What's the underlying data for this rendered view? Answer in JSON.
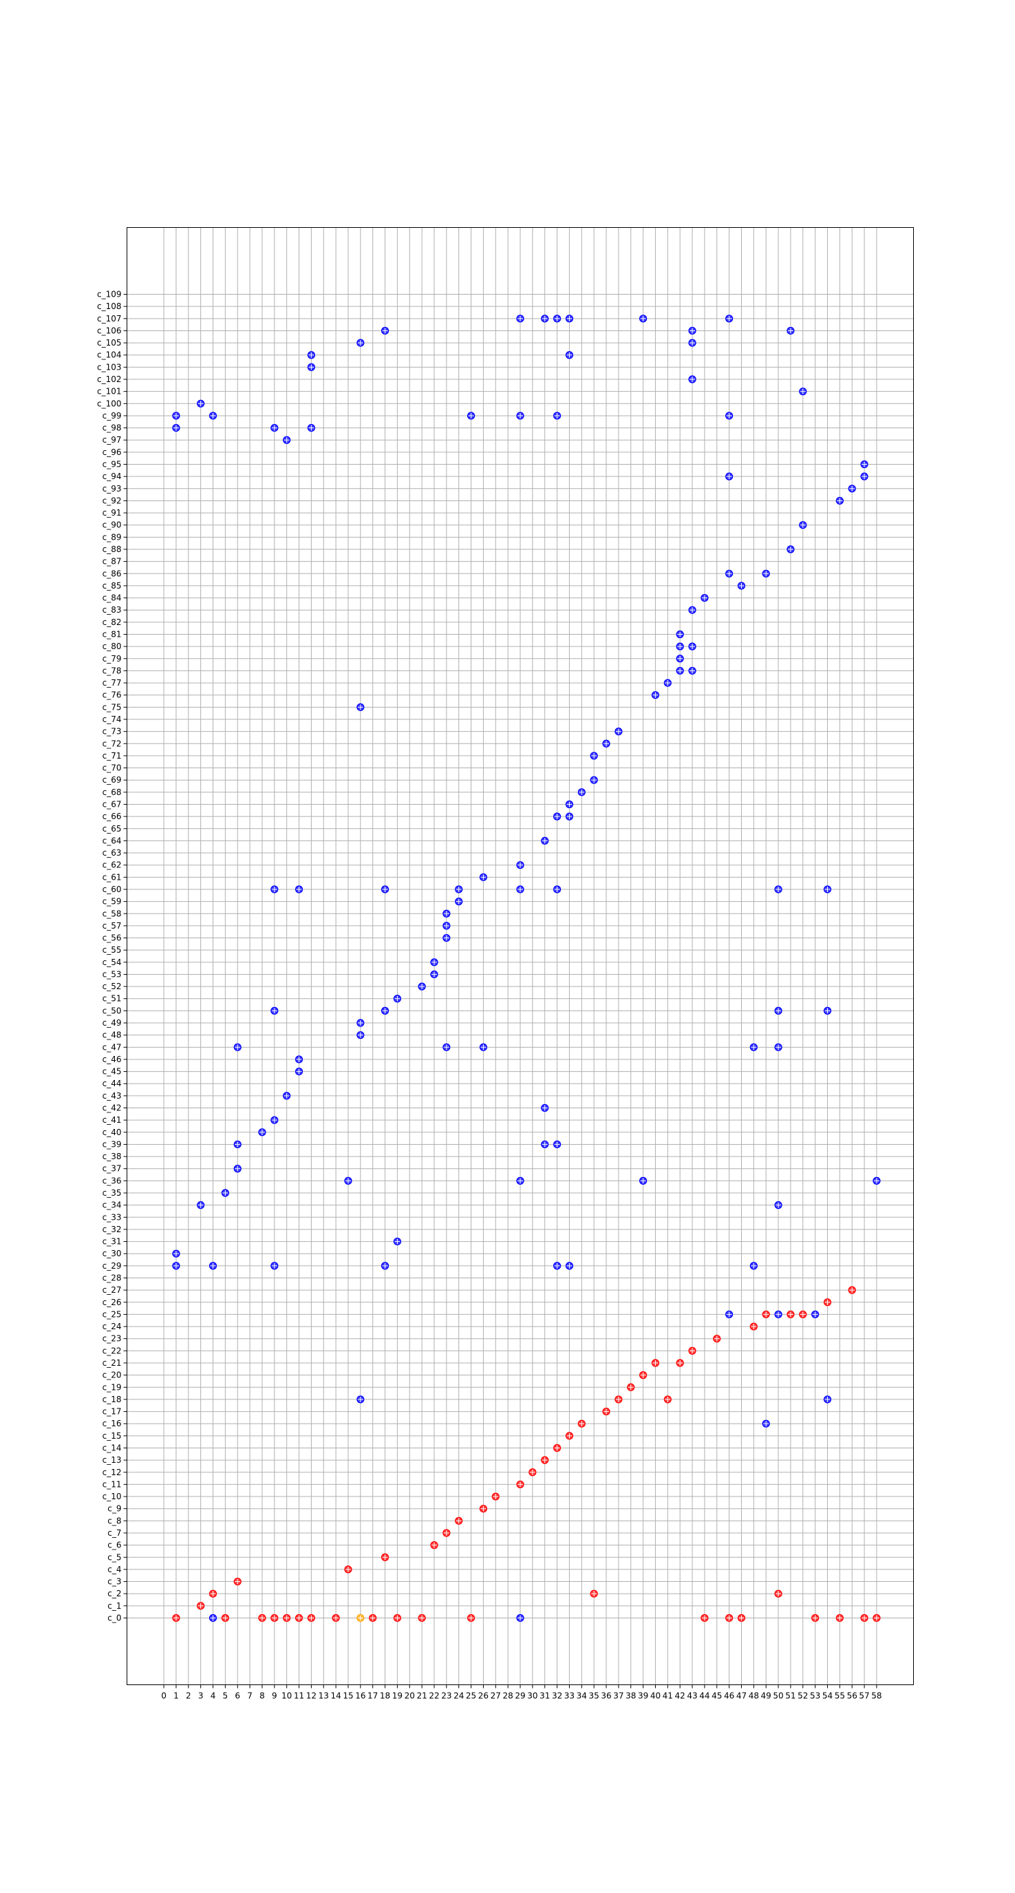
{
  "chart_data": {
    "type": "scatter",
    "title": "",
    "xlabel": "",
    "ylabel": "",
    "x_ticks": [
      0,
      1,
      2,
      3,
      4,
      5,
      6,
      7,
      8,
      9,
      10,
      11,
      12,
      13,
      14,
      15,
      16,
      17,
      18,
      19,
      20,
      21,
      22,
      23,
      24,
      25,
      26,
      27,
      28,
      29,
      30,
      31,
      32,
      33,
      34,
      35,
      36,
      37,
      38,
      39,
      40,
      41,
      42,
      43,
      44,
      45,
      46,
      47,
      48,
      49,
      50,
      51,
      52,
      53,
      54,
      55,
      56,
      57,
      58
    ],
    "y_categories_count": 110,
    "y_category_prefix": "c_",
    "xlim": [
      -3,
      61
    ],
    "ylim": [
      -5.5,
      114.5
    ],
    "grid": true,
    "legend": "none",
    "colors": {
      "red": "#ff0000",
      "blue": "#0000ff",
      "orange": "#ffa500"
    },
    "series": [
      {
        "color": "red",
        "points": [
          [
            1,
            0
          ],
          [
            8,
            0
          ],
          [
            9,
            0
          ],
          [
            10,
            0
          ],
          [
            11,
            0
          ],
          [
            12,
            0
          ],
          [
            14,
            0
          ],
          [
            17,
            0
          ],
          [
            19,
            0
          ],
          [
            21,
            0
          ],
          [
            25,
            0
          ],
          [
            44,
            0
          ],
          [
            46,
            0
          ],
          [
            47,
            0
          ],
          [
            53,
            0
          ],
          [
            55,
            0
          ],
          [
            57,
            0
          ],
          [
            58,
            0
          ],
          [
            5,
            0
          ],
          [
            3,
            1
          ],
          [
            4,
            2
          ],
          [
            35,
            2
          ],
          [
            50,
            2
          ],
          [
            6,
            3
          ],
          [
            15,
            4
          ],
          [
            18,
            5
          ],
          [
            22,
            6
          ],
          [
            23,
            7
          ],
          [
            24,
            8
          ],
          [
            26,
            9
          ],
          [
            27,
            10
          ],
          [
            29,
            11
          ],
          [
            30,
            12
          ],
          [
            31,
            13
          ],
          [
            32,
            14
          ],
          [
            33,
            15
          ],
          [
            34,
            16
          ],
          [
            36,
            17
          ],
          [
            37,
            18
          ],
          [
            41,
            18
          ],
          [
            39,
            20
          ],
          [
            38,
            19
          ],
          [
            40,
            21
          ],
          [
            42,
            21
          ],
          [
            43,
            22
          ],
          [
            45,
            23
          ],
          [
            48,
            24
          ],
          [
            49,
            25
          ],
          [
            51,
            25
          ],
          [
            52,
            25
          ],
          [
            54,
            26
          ],
          [
            56,
            27
          ]
        ]
      },
      {
        "color": "orange",
        "points": [
          [
            16,
            0
          ]
        ]
      },
      {
        "color": "blue",
        "points": [
          [
            4,
            0
          ],
          [
            29,
            0
          ],
          [
            49,
            16
          ],
          [
            16,
            18
          ],
          [
            54,
            18
          ],
          [
            46,
            25
          ],
          [
            50,
            25
          ],
          [
            53,
            25
          ],
          [
            1,
            29
          ],
          [
            4,
            29
          ],
          [
            9,
            29
          ],
          [
            18,
            29
          ],
          [
            32,
            29
          ],
          [
            33,
            29
          ],
          [
            48,
            29
          ],
          [
            1,
            30
          ],
          [
            19,
            31
          ],
          [
            3,
            34
          ],
          [
            50,
            34
          ],
          [
            5,
            35
          ],
          [
            15,
            36
          ],
          [
            29,
            36
          ],
          [
            39,
            36
          ],
          [
            58,
            36
          ],
          [
            6,
            37
          ],
          [
            6,
            39
          ],
          [
            31,
            39
          ],
          [
            32,
            39
          ],
          [
            8,
            40
          ],
          [
            9,
            41
          ],
          [
            31,
            42
          ],
          [
            10,
            43
          ],
          [
            11,
            45
          ],
          [
            11,
            46
          ],
          [
            6,
            47
          ],
          [
            23,
            47
          ],
          [
            26,
            47
          ],
          [
            48,
            47
          ],
          [
            50,
            47
          ],
          [
            16,
            48
          ],
          [
            16,
            49
          ],
          [
            9,
            50
          ],
          [
            18,
            50
          ],
          [
            50,
            50
          ],
          [
            54,
            50
          ],
          [
            19,
            51
          ],
          [
            21,
            52
          ],
          [
            22,
            53
          ],
          [
            22,
            54
          ],
          [
            23,
            56
          ],
          [
            23,
            57
          ],
          [
            23,
            58
          ],
          [
            24,
            59
          ],
          [
            9,
            60
          ],
          [
            11,
            60
          ],
          [
            18,
            60
          ],
          [
            24,
            60
          ],
          [
            29,
            60
          ],
          [
            32,
            60
          ],
          [
            50,
            60
          ],
          [
            54,
            60
          ],
          [
            26,
            61
          ],
          [
            29,
            62
          ],
          [
            31,
            64
          ],
          [
            32,
            66
          ],
          [
            33,
            66
          ],
          [
            33,
            67
          ],
          [
            34,
            68
          ],
          [
            35,
            69
          ],
          [
            35,
            71
          ],
          [
            36,
            72
          ],
          [
            37,
            73
          ],
          [
            16,
            75
          ],
          [
            40,
            76
          ],
          [
            41,
            77
          ],
          [
            42,
            78
          ],
          [
            43,
            78
          ],
          [
            42,
            79
          ],
          [
            42,
            80
          ],
          [
            43,
            80
          ],
          [
            42,
            81
          ],
          [
            43,
            83
          ],
          [
            44,
            84
          ],
          [
            47,
            85
          ],
          [
            46,
            86
          ],
          [
            49,
            86
          ],
          [
            51,
            88
          ],
          [
            52,
            90
          ],
          [
            55,
            92
          ],
          [
            56,
            93
          ],
          [
            46,
            94
          ],
          [
            57,
            94
          ],
          [
            57,
            95
          ],
          [
            10,
            97
          ],
          [
            1,
            98
          ],
          [
            9,
            98
          ],
          [
            12,
            98
          ],
          [
            1,
            99
          ],
          [
            4,
            99
          ],
          [
            25,
            99
          ],
          [
            29,
            99
          ],
          [
            32,
            99
          ],
          [
            46,
            99
          ],
          [
            3,
            100
          ],
          [
            52,
            101
          ],
          [
            43,
            102
          ],
          [
            12,
            103
          ],
          [
            12,
            104
          ],
          [
            33,
            104
          ],
          [
            16,
            105
          ],
          [
            43,
            105
          ],
          [
            18,
            106
          ],
          [
            43,
            106
          ],
          [
            51,
            106
          ],
          [
            29,
            107
          ],
          [
            31,
            107
          ],
          [
            32,
            107
          ],
          [
            33,
            107
          ],
          [
            39,
            107
          ],
          [
            46,
            107
          ]
        ]
      }
    ]
  }
}
